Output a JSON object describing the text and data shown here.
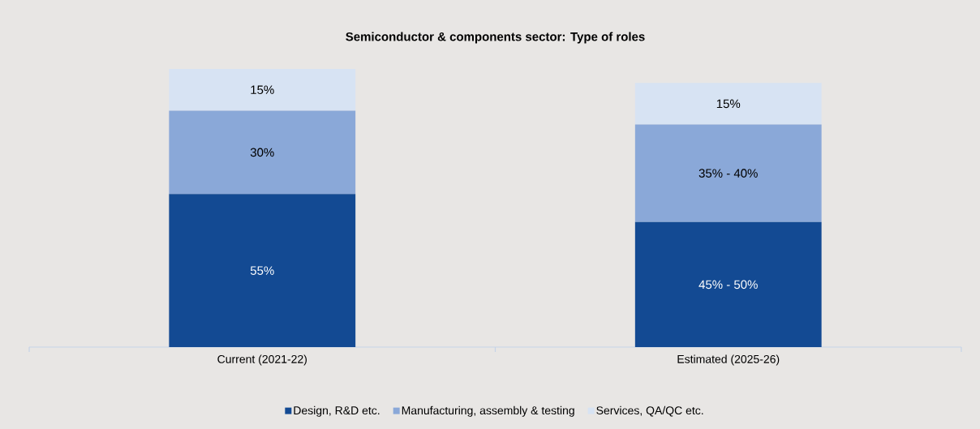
{
  "chart_data": {
    "type": "bar",
    "title": "Semiconductor & components sector: Type of roles",
    "categories": [
      "Current (2021-22)",
      "Estimated (2025-26)"
    ],
    "stacked": true,
    "legend": "bottom",
    "series": [
      {
        "name": "Design, R&D etc.",
        "color": "#134a93",
        "values": [
          55,
          45
        ],
        "value_labels": [
          "55%",
          "45% - 50%"
        ]
      },
      {
        "name": "Manufacturing, assembly & testing",
        "color": "#8aa8d8",
        "values": [
          30,
          35
        ],
        "value_labels": [
          "30%",
          "35% - 40%"
        ]
      },
      {
        "name": "Services, QA/QC etc.",
        "color": "#d7e3f3",
        "values": [
          15,
          15
        ],
        "value_labels": [
          "15%",
          "15%"
        ]
      }
    ]
  }
}
